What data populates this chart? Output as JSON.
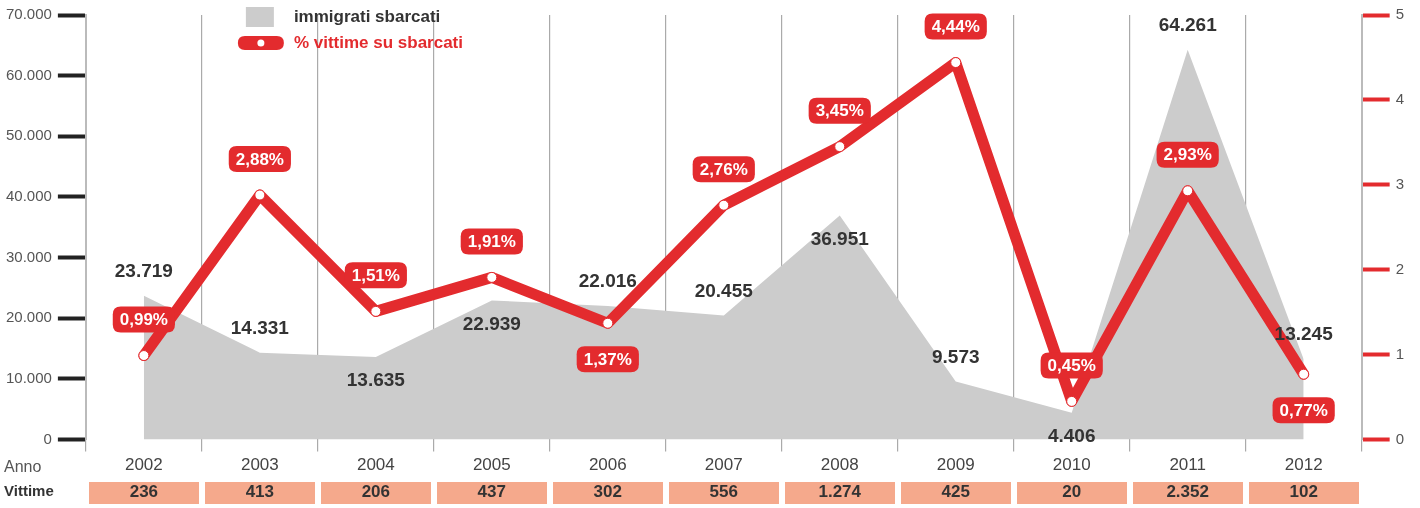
{
  "chart_data": {
    "type": "area",
    "xlabel": "Anno",
    "categories": [
      "2002",
      "2003",
      "2004",
      "2005",
      "2006",
      "2007",
      "2008",
      "2009",
      "2010",
      "2011",
      "2012"
    ],
    "series": [
      {
        "name": "immigrati sbarcati",
        "color": "#cccccc",
        "values": [
          23719,
          14331,
          13635,
          22939,
          22016,
          20455,
          36951,
          9573,
          4406,
          64261,
          13245
        ],
        "value_labels": [
          "23.719",
          "14.331",
          "13.635",
          "22.939",
          "22.016",
          "20.455",
          "36.951",
          "9.573",
          "4.406",
          "64.261",
          "13.245"
        ]
      },
      {
        "name": "% vittime su sbarcati",
        "type": "line",
        "axis": "y2",
        "color": "#e32b2e",
        "marker": "circle",
        "values": [
          0.99,
          2.88,
          1.51,
          1.91,
          1.37,
          2.76,
          3.45,
          4.44,
          0.45,
          2.93,
          0.77
        ],
        "value_labels": [
          "0,99%",
          "2,88%",
          "1,51%",
          "1,91%",
          "1,37%",
          "2,76%",
          "3,45%",
          "4,44%",
          "0,45%",
          "2,93%",
          "0,77%"
        ]
      }
    ],
    "annotations": [
      "Vittime",
      "236",
      "413",
      "206",
      "437",
      "302",
      "556",
      "1.274",
      "425",
      "20",
      "2.352",
      "102"
    ],
    "ylim": [
      0,
      70000
    ],
    "yticks": [
      0,
      {
        "value": 10000,
        "label": "10.000"
      },
      {
        "value": 20000,
        "label": "20.000"
      },
      {
        "value": 30000,
        "label": "30.000"
      },
      {
        "value": 40000,
        "label": "40.000"
      },
      {
        "value": 50000,
        "label": "50.000"
      },
      {
        "value": 60000,
        "label": "60.000"
      },
      {
        "value": 70000,
        "label": "70.000"
      }
    ],
    "y2lim": [
      0,
      5
    ],
    "y2ticks": [
      0,
      1,
      2,
      3,
      4,
      5
    ],
    "grid": "x",
    "legend": "top left"
  }
}
